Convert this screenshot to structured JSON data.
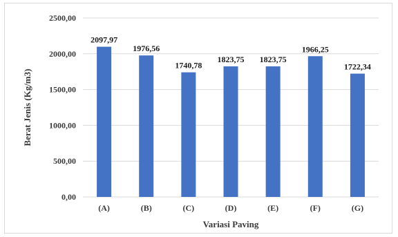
{
  "chart_data": {
    "type": "bar",
    "title": "",
    "xlabel": "Variasi Paving",
    "ylabel": "Berat Jenis (Kg/m3)",
    "categories": [
      "(A)",
      "(B)",
      "(C)",
      "(D)",
      "(E)",
      "(F)",
      "(G)"
    ],
    "values": [
      2097.97,
      1976.56,
      1740.78,
      1823.75,
      1823.75,
      1966.25,
      1722.34
    ],
    "data_labels": [
      "2097,97",
      "1976,56",
      "1740,78",
      "1823,75",
      "1823,75",
      "1966,25",
      "1722,34"
    ],
    "ylim": [
      0,
      2500
    ],
    "yticks": [
      0,
      500,
      1000,
      1500,
      2000,
      2500
    ],
    "ytick_labels": [
      "0,00",
      "500,00",
      "1000,00",
      "1500,00",
      "2000,00",
      "2500,00"
    ],
    "grid": "horizontal",
    "legend": "none",
    "colors": {
      "bar": "#4472c4",
      "grid": "#d9d9d9"
    }
  }
}
